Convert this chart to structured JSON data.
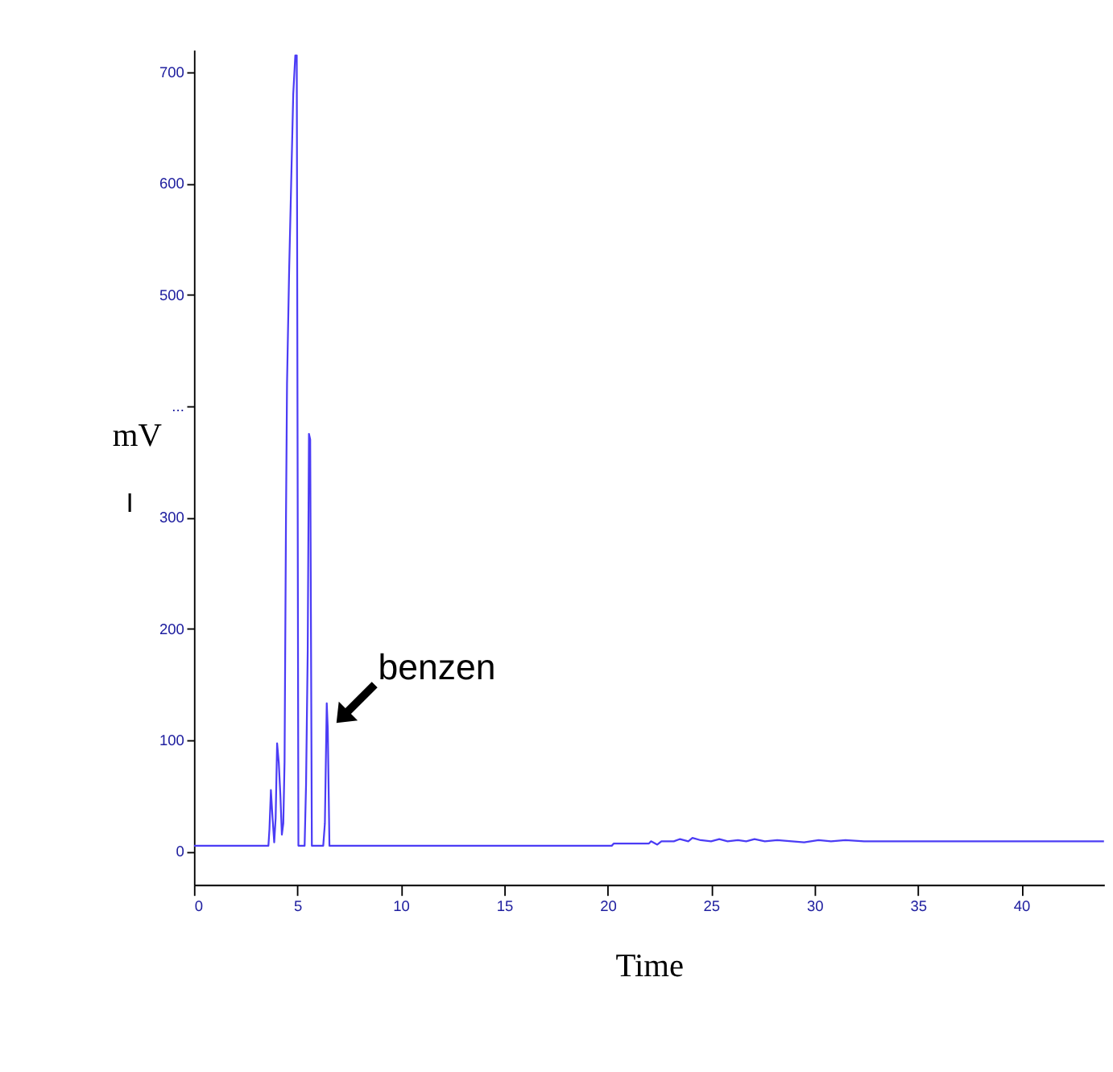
{
  "chart_data": {
    "type": "line",
    "xlabel": "Time",
    "ylabel": "mV",
    "x": [
      0,
      3.6,
      3.65,
      3.72,
      3.8,
      3.88,
      3.95,
      4.02,
      4.1,
      4.18,
      4.25,
      4.32,
      4.38,
      4.45,
      4.5,
      4.6,
      4.7,
      4.8,
      4.9,
      4.97,
      5.05,
      5.1,
      5.35,
      5.42,
      5.5,
      5.56,
      5.62,
      5.7,
      5.75,
      6.25,
      6.33,
      6.42,
      6.47,
      6.55,
      6.6,
      20.2,
      20.3,
      22.0,
      22.1,
      22.4,
      22.6,
      23.2,
      23.5,
      23.9,
      24.1,
      24.5,
      25.0,
      25.4,
      25.8,
      26.3,
      26.7,
      27.1,
      27.6,
      28.2,
      29.5,
      30.2,
      30.8,
      31.5,
      32.4,
      44
    ],
    "series": [
      {
        "color": "#4b3cf5",
        "values": [
          5,
          5,
          20,
          55,
          30,
          8,
          30,
          97,
          80,
          50,
          15,
          25,
          80,
          300,
          420,
          520,
          600,
          680,
          715,
          715,
          5,
          5,
          5,
          60,
          180,
          375,
          370,
          5,
          5,
          5,
          25,
          133,
          110,
          5,
          5,
          5,
          7,
          7,
          9,
          6,
          9,
          9,
          11,
          9,
          12,
          10,
          9,
          11,
          9,
          10,
          9,
          11,
          9,
          10,
          8,
          10,
          9,
          10,
          9,
          9
        ]
      }
    ],
    "xlim": [
      0,
      44
    ],
    "xticks": [
      0,
      5,
      10,
      15,
      20,
      25,
      30,
      35,
      40
    ],
    "ylim": [
      -30,
      720
    ],
    "yticks": [
      0,
      100,
      200,
      300,
      {
        "value": 400,
        "label": "..."
      },
      500,
      600,
      700
    ],
    "grid": false,
    "legend": false,
    "marker": "none",
    "line_style": "solid",
    "annotations": [
      "I",
      {
        "text": "benzen",
        "x": 6.6,
        "y": 110
      }
    ]
  }
}
